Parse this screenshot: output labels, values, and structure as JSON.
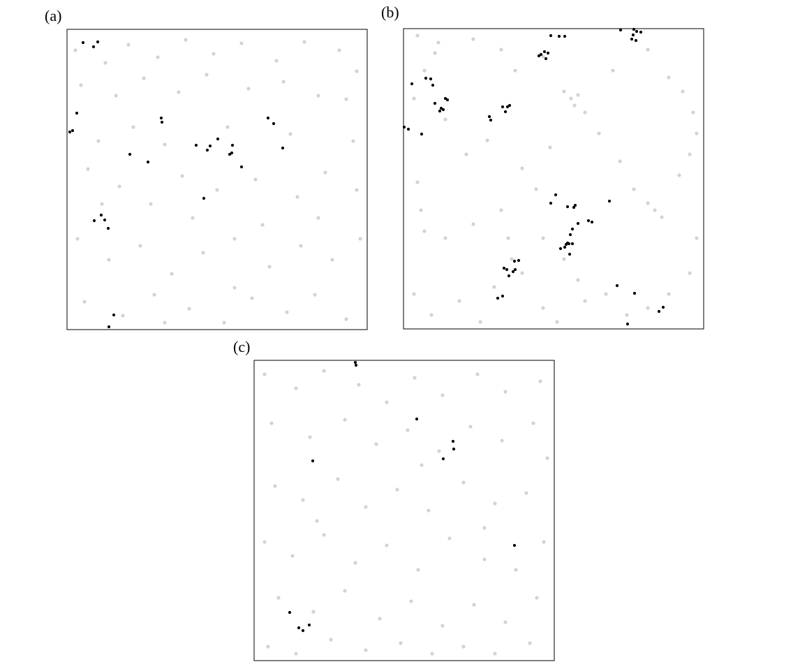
{
  "chart_data": [
    {
      "type": "scatter",
      "title": "(a)",
      "xlim": [
        0,
        430
      ],
      "ylim": [
        430,
        0
      ],
      "series": [
        {
          "color": "#d3d3d3",
          "points": [
            [
              12,
              30
            ],
            [
              55,
              48
            ],
            [
              88,
              22
            ],
            [
              130,
              40
            ],
            [
              170,
              15
            ],
            [
              210,
              35
            ],
            [
              250,
              20
            ],
            [
              300,
              45
            ],
            [
              340,
              18
            ],
            [
              390,
              30
            ],
            [
              415,
              60
            ],
            [
              20,
              80
            ],
            [
              70,
              95
            ],
            [
              110,
              70
            ],
            [
              160,
              90
            ],
            [
              200,
              65
            ],
            [
              260,
              85
            ],
            [
              310,
              75
            ],
            [
              360,
              95
            ],
            [
              400,
              100
            ],
            [
              30,
              200
            ],
            [
              75,
              225
            ],
            [
              120,
              250
            ],
            [
              165,
              210
            ],
            [
              215,
              230
            ],
            [
              270,
              215
            ],
            [
              330,
              240
            ],
            [
              370,
              205
            ],
            [
              415,
              230
            ],
            [
              15,
              300
            ],
            [
              60,
              330
            ],
            [
              105,
              310
            ],
            [
              150,
              350
            ],
            [
              195,
              320
            ],
            [
              240,
              300
            ],
            [
              290,
              340
            ],
            [
              335,
              310
            ],
            [
              380,
              330
            ],
            [
              420,
              300
            ],
            [
              25,
              390
            ],
            [
              80,
              410
            ],
            [
              125,
              380
            ],
            [
              175,
              400
            ],
            [
              225,
              420
            ],
            [
              265,
              385
            ],
            [
              315,
              405
            ],
            [
              355,
              380
            ],
            [
              400,
              415
            ],
            [
              45,
              160
            ],
            [
              140,
              165
            ],
            [
              230,
              140
            ],
            [
              320,
              150
            ],
            [
              410,
              160
            ],
            [
              95,
              140
            ],
            [
              280,
              280
            ],
            [
              180,
              270
            ],
            [
              50,
              250
            ],
            [
              360,
              270
            ],
            [
              240,
              370
            ],
            [
              140,
              420
            ]
          ]
        },
        {
          "color": "#000000",
          "points": [
            [
              23,
              19
            ],
            [
              38,
              25
            ],
            [
              44,
              18
            ],
            [
              14,
              120
            ],
            [
              4,
              147
            ],
            [
              8,
              145
            ],
            [
              135,
              127
            ],
            [
              136,
              133
            ],
            [
              90,
              179
            ],
            [
              116,
              190
            ],
            [
              185,
              166
            ],
            [
              201,
              173
            ],
            [
              205,
              167
            ],
            [
              216,
              157
            ],
            [
              233,
              179
            ],
            [
              236,
              177
            ],
            [
              237,
              166
            ],
            [
              250,
              197
            ],
            [
              288,
              127
            ],
            [
              296,
              135
            ],
            [
              309,
              170
            ],
            [
              196,
              242
            ],
            [
              39,
              274
            ],
            [
              49,
              266
            ],
            [
              54,
              273
            ],
            [
              59,
              285
            ],
            [
              67,
              409
            ],
            [
              60,
              426
            ]
          ]
        }
      ]
    },
    {
      "type": "scatter",
      "title": "(b)",
      "xlim": [
        0,
        430
      ],
      "ylim": [
        430,
        0
      ],
      "series": [
        {
          "color": "#d3d3d3",
          "points": [
            [
              20,
              10
            ],
            [
              50,
              20
            ],
            [
              45,
              35
            ],
            [
              100,
              15
            ],
            [
              140,
              30
            ],
            [
              160,
              60
            ],
            [
              200,
              40
            ],
            [
              230,
              90
            ],
            [
              240,
              100
            ],
            [
              250,
              95
            ],
            [
              245,
              110
            ],
            [
              260,
              120
            ],
            [
              300,
              60
            ],
            [
              350,
              30
            ],
            [
              380,
              70
            ],
            [
              400,
              90
            ],
            [
              415,
              120
            ],
            [
              420,
              150
            ],
            [
              410,
              180
            ],
            [
              395,
              210
            ],
            [
              30,
              60
            ],
            [
              15,
              100
            ],
            [
              60,
              130
            ],
            [
              90,
              180
            ],
            [
              120,
              160
            ],
            [
              170,
              200
            ],
            [
              190,
              230
            ],
            [
              210,
              170
            ],
            [
              280,
              150
            ],
            [
              310,
              190
            ],
            [
              350,
              250
            ],
            [
              370,
              270
            ],
            [
              360,
              260
            ],
            [
              330,
              230
            ],
            [
              20,
              220
            ],
            [
              25,
              260
            ],
            [
              30,
              290
            ],
            [
              60,
              300
            ],
            [
              100,
              280
            ],
            [
              140,
              260
            ],
            [
              150,
              300
            ],
            [
              155,
              330
            ],
            [
              170,
              350
            ],
            [
              200,
              300
            ],
            [
              230,
              330
            ],
            [
              250,
              360
            ],
            [
              260,
              390
            ],
            [
              290,
              380
            ],
            [
              320,
              410
            ],
            [
              350,
              400
            ],
            [
              380,
              380
            ],
            [
              410,
              350
            ],
            [
              420,
              300
            ],
            [
              15,
              380
            ],
            [
              40,
              410
            ],
            [
              80,
              390
            ],
            [
              110,
              420
            ],
            [
              130,
              370
            ],
            [
              200,
              400
            ],
            [
              220,
              420
            ]
          ]
        },
        {
          "color": "#000000",
          "points": [
            [
              211,
              10
            ],
            [
              223,
              11
            ],
            [
              231,
              11
            ],
            [
              311,
              2
            ],
            [
              330,
              1
            ],
            [
              334,
              4
            ],
            [
              340,
              5
            ],
            [
              327,
              15
            ],
            [
              333,
              17
            ],
            [
              329,
              9
            ],
            [
              197,
              37
            ],
            [
              202,
              33
            ],
            [
              207,
              35
            ],
            [
              204,
              43
            ],
            [
              194,
              39
            ],
            [
              32,
              71
            ],
            [
              39,
              72
            ],
            [
              12,
              79
            ],
            [
              42,
              81
            ],
            [
              60,
              100
            ],
            [
              63,
              102
            ],
            [
              45,
              107
            ],
            [
              54,
              114
            ],
            [
              52,
              118
            ],
            [
              57,
              116
            ],
            [
              142,
              112
            ],
            [
              146,
              119
            ],
            [
              149,
              112
            ],
            [
              152,
              110
            ],
            [
              123,
              126
            ],
            [
              125,
              131
            ],
            [
              1,
              141
            ],
            [
              7,
              144
            ],
            [
              26,
              151
            ],
            [
              218,
              238
            ],
            [
              211,
              250
            ],
            [
              235,
              255
            ],
            [
              244,
              256
            ],
            [
              246,
              253
            ],
            [
              295,
              247
            ],
            [
              250,
              279
            ],
            [
              265,
              275
            ],
            [
              270,
              277
            ],
            [
              242,
              287
            ],
            [
              239,
              295
            ],
            [
              235,
              307
            ],
            [
              231,
              313
            ],
            [
              225,
              315
            ],
            [
              237,
              308
            ],
            [
              242,
              308
            ],
            [
              233,
              309
            ],
            [
              238,
              323
            ],
            [
              159,
              333
            ],
            [
              165,
              332
            ],
            [
              144,
              343
            ],
            [
              148,
              345
            ],
            [
              160,
              345
            ],
            [
              157,
              348
            ],
            [
              151,
              354
            ],
            [
              142,
              383
            ],
            [
              135,
              386
            ],
            [
              306,
              368
            ],
            [
              331,
              379
            ],
            [
              372,
              399
            ],
            [
              366,
              405
            ],
            [
              321,
              423
            ]
          ]
        }
      ]
    },
    {
      "type": "scatter",
      "title": "(c)",
      "xlim": [
        0,
        430
      ],
      "ylim": [
        430,
        0
      ],
      "series": [
        {
          "color": "#d3d3d3",
          "points": [
            [
              15,
              20
            ],
            [
              60,
              40
            ],
            [
              100,
              15
            ],
            [
              150,
              35
            ],
            [
              190,
              60
            ],
            [
              230,
              25
            ],
            [
              270,
              50
            ],
            [
              320,
              20
            ],
            [
              360,
              45
            ],
            [
              410,
              30
            ],
            [
              25,
              90
            ],
            [
              80,
              110
            ],
            [
              130,
              85
            ],
            [
              175,
              120
            ],
            [
              220,
              100
            ],
            [
              265,
              130
            ],
            [
              310,
              95
            ],
            [
              355,
              115
            ],
            [
              400,
              90
            ],
            [
              420,
              140
            ],
            [
              30,
              180
            ],
            [
              70,
              200
            ],
            [
              120,
              170
            ],
            [
              160,
              210
            ],
            [
              205,
              185
            ],
            [
              250,
              215
            ],
            [
              300,
              175
            ],
            [
              345,
              205
            ],
            [
              390,
              190
            ],
            [
              15,
              260
            ],
            [
              55,
              280
            ],
            [
              100,
              250
            ],
            [
              145,
              290
            ],
            [
              190,
              265
            ],
            [
              235,
              300
            ],
            [
              280,
              255
            ],
            [
              330,
              285
            ],
            [
              375,
              300
            ],
            [
              415,
              260
            ],
            [
              35,
              340
            ],
            [
              85,
              360
            ],
            [
              130,
              330
            ],
            [
              180,
              370
            ],
            [
              225,
              345
            ],
            [
              270,
              380
            ],
            [
              315,
              350
            ],
            [
              360,
              375
            ],
            [
              405,
              340
            ],
            [
              20,
              410
            ],
            [
              60,
              420
            ],
            [
              110,
              400
            ],
            [
              160,
              415
            ],
            [
              210,
              405
            ],
            [
              255,
              420
            ],
            [
              300,
              410
            ],
            [
              345,
              420
            ],
            [
              395,
              405
            ],
            [
              240,
              150
            ],
            [
              90,
              230
            ],
            [
              330,
              240
            ]
          ]
        },
        {
          "color": "#000000",
          "points": [
            [
              145,
              3
            ],
            [
              146,
              7
            ],
            [
              233,
              84
            ],
            [
              285,
              116
            ],
            [
              286,
              127
            ],
            [
              271,
              141
            ],
            [
              84,
              144
            ],
            [
              373,
              265
            ],
            [
              51,
              361
            ],
            [
              64,
              383
            ],
            [
              70,
              387
            ],
            [
              79,
              379
            ]
          ]
        }
      ]
    }
  ]
}
